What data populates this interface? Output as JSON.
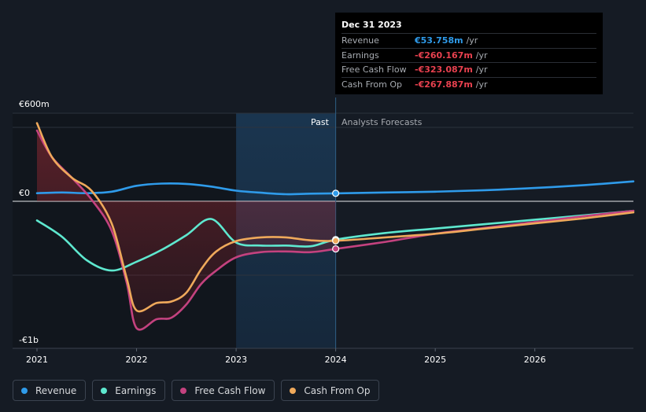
{
  "tooltip": {
    "date": "Dec 31 2023",
    "rows": [
      {
        "label": "Revenue",
        "value": "€53.758m",
        "unit": "/yr",
        "color": "#2f9bea"
      },
      {
        "label": "Earnings",
        "value": "-€260.167m",
        "unit": "/yr",
        "color": "#e8414f"
      },
      {
        "label": "Free Cash Flow",
        "value": "-€323.087m",
        "unit": "/yr",
        "color": "#e8414f"
      },
      {
        "label": "Cash From Op",
        "value": "-€267.887m",
        "unit": "/yr",
        "color": "#e8414f"
      }
    ]
  },
  "labels": {
    "past": "Past",
    "forecast": "Analysts Forecasts",
    "y_top": "€600m",
    "y_zero": "€0",
    "y_bottom": "-€1b"
  },
  "colors": {
    "revenue": "#2f9bea",
    "earnings": "#5ee8cf",
    "fcf": "#c4427f",
    "cfo": "#efa95b"
  },
  "legend": [
    {
      "label": "Revenue",
      "color": "#2f9bea"
    },
    {
      "label": "Earnings",
      "color": "#5ee8cf"
    },
    {
      "label": "Free Cash Flow",
      "color": "#c4427f"
    },
    {
      "label": "Cash From Op",
      "color": "#efa95b"
    }
  ],
  "chart_data": {
    "type": "line",
    "title": "",
    "xlabel": "",
    "ylabel": "",
    "unit": "€m",
    "xlim": [
      2021.0,
      2026.99
    ],
    "ylim": [
      -1000,
      600
    ],
    "x_ticks": [
      2021,
      2022,
      2023,
      2024,
      2025,
      2026
    ],
    "x_tick_labels": [
      "2021",
      "2022",
      "2023",
      "2024",
      "2025",
      "2026"
    ],
    "y_tick_labels": [
      "€600m",
      "€0",
      "-€1b"
    ],
    "past_region": [
      2023.0,
      2024.0
    ],
    "past_label": "Past",
    "forecast_label": "Analysts Forecasts",
    "highlight_x": 2024.0,
    "series": [
      {
        "name": "Revenue",
        "x": [
          2021.0,
          2021.25,
          2021.5,
          2021.75,
          2022.0,
          2022.25,
          2022.5,
          2022.75,
          2023.0,
          2023.25,
          2023.5,
          2023.75,
          2024.0,
          2024.5,
          2025.0,
          2025.5,
          2026.0,
          2026.5,
          2026.99
        ],
        "y": [
          55,
          60,
          55,
          65,
          105,
          120,
          118,
          100,
          72,
          58,
          48,
          52,
          54,
          60,
          65,
          75,
          90,
          110,
          135
        ]
      },
      {
        "name": "Earnings",
        "x": [
          2021.0,
          2021.25,
          2021.5,
          2021.75,
          2022.0,
          2022.25,
          2022.5,
          2022.75,
          2023.0,
          2023.25,
          2023.5,
          2023.75,
          2024.0,
          2024.5,
          2025.0,
          2025.5,
          2026.0,
          2026.5,
          2026.99
        ],
        "y": [
          -130,
          -240,
          -400,
          -470,
          -410,
          -330,
          -230,
          -120,
          -280,
          -300,
          -300,
          -305,
          -260,
          -215,
          -185,
          -155,
          -125,
          -95,
          -65
        ]
      },
      {
        "name": "Free Cash Flow",
        "x": [
          2021.0,
          2021.15,
          2021.35,
          2021.55,
          2021.75,
          2021.9,
          2022.0,
          2022.2,
          2022.35,
          2022.5,
          2022.65,
          2022.8,
          2023.0,
          2023.25,
          2023.5,
          2023.75,
          2024.0,
          2024.5,
          2025.0,
          2025.5,
          2026.0,
          2026.5,
          2026.99
        ],
        "y": [
          480,
          300,
          160,
          10,
          -200,
          -550,
          -860,
          -800,
          -790,
          -700,
          -560,
          -470,
          -380,
          -345,
          -340,
          -345,
          -323,
          -275,
          -220,
          -180,
          -140,
          -100,
          -65
        ]
      },
      {
        "name": "Cash From Op",
        "x": [
          2021.0,
          2021.15,
          2021.35,
          2021.55,
          2021.75,
          2021.9,
          2022.0,
          2022.2,
          2022.35,
          2022.5,
          2022.65,
          2022.8,
          2023.0,
          2023.25,
          2023.5,
          2023.75,
          2024.0,
          2024.5,
          2025.0,
          2025.5,
          2026.0,
          2026.5,
          2026.99
        ],
        "y": [
          530,
          300,
          160,
          70,
          -150,
          -520,
          -740,
          -690,
          -680,
          -620,
          -460,
          -340,
          -270,
          -245,
          -245,
          -265,
          -268,
          -245,
          -220,
          -185,
          -150,
          -115,
          -75
        ]
      }
    ]
  }
}
